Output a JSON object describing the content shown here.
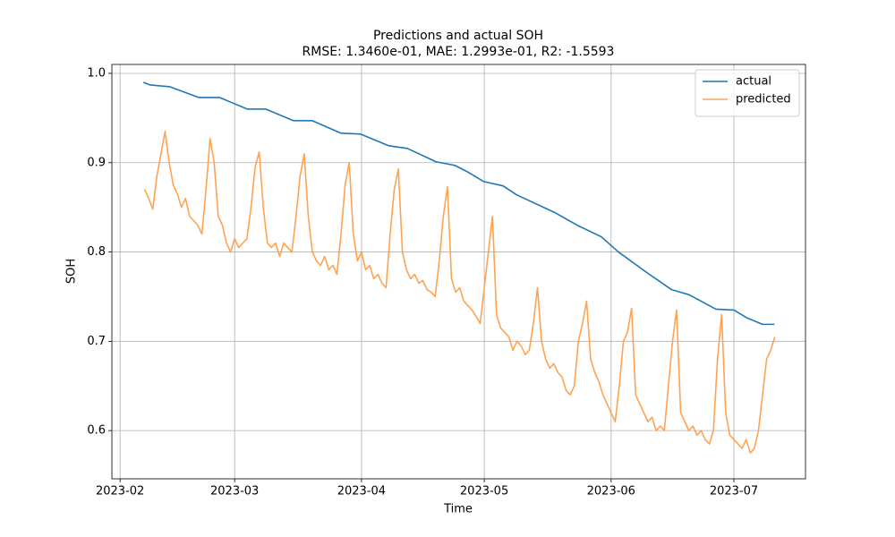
{
  "chart_data": {
    "type": "line",
    "title": "Predictions and actual SOH",
    "subtitle": "RMSE: 1.3460e-01, MAE: 1.2993e-01, R2: -1.5593",
    "x_label": "Time",
    "y_label": "SOH",
    "xlim": [
      -2,
      167.5
    ],
    "ylim": [
      0.546,
      1.01
    ],
    "xticks": [
      {
        "value": 0,
        "label": "2023-02"
      },
      {
        "value": 28,
        "label": "2023-03"
      },
      {
        "value": 59,
        "label": "2023-04"
      },
      {
        "value": 89,
        "label": "2023-05"
      },
      {
        "value": 120,
        "label": "2023-06"
      },
      {
        "value": 150,
        "label": "2023-07"
      }
    ],
    "yticks": [
      0.6,
      0.7,
      0.8,
      0.9,
      {
        "value": 1.0,
        "label": "1.0"
      }
    ],
    "grid": true,
    "legend": "upper right",
    "series": [
      {
        "name": "actual",
        "color": "#1f77b4",
        "x": [
          5.7,
          7.4,
          12.2,
          19.2,
          24.3,
          31.1,
          35.6,
          42.4,
          47.0,
          54.0,
          58.8,
          65.6,
          70.2,
          77.2,
          81.8,
          84.8,
          88.8,
          93.6,
          96.9,
          106.3,
          111.7,
          117.6,
          121.8,
          128.1,
          134.7,
          139.1,
          145.6,
          150.0,
          153.3,
          157.0,
          159.9
        ],
        "values": [
          0.99,
          0.987,
          0.985,
          0.973,
          0.973,
          0.96,
          0.96,
          0.947,
          0.947,
          0.933,
          0.932,
          0.919,
          0.916,
          0.901,
          0.897,
          0.89,
          0.879,
          0.874,
          0.864,
          0.844,
          0.83,
          0.817,
          0.8,
          0.779,
          0.758,
          0.752,
          0.736,
          0.735,
          0.726,
          0.719,
          0.719
        ]
      },
      {
        "name": "predicted",
        "color": "#ffa352",
        "x": [
          6,
          7,
          8,
          9,
          10,
          11,
          12,
          13,
          14,
          15,
          16,
          17,
          18,
          19,
          20,
          21,
          22,
          23,
          24,
          25,
          26,
          27,
          28,
          29,
          30,
          31,
          32,
          33,
          34,
          35,
          36,
          37,
          38,
          39,
          40,
          41,
          42,
          43,
          44,
          45,
          46,
          47,
          48,
          49,
          50,
          51,
          52,
          53,
          54,
          55,
          56,
          57,
          58,
          59,
          60,
          61,
          62,
          63,
          64,
          65,
          66,
          67,
          68,
          69,
          70,
          71,
          72,
          73,
          74,
          75,
          76,
          77,
          78,
          79,
          80,
          81,
          82,
          83,
          84,
          85,
          86,
          87,
          88,
          89,
          90,
          91,
          92,
          93,
          94,
          95,
          96,
          97,
          98,
          99,
          100,
          101,
          102,
          103,
          104,
          105,
          106,
          107,
          108,
          109,
          110,
          111,
          112,
          113,
          114,
          115,
          116,
          117,
          118,
          119,
          120,
          121,
          122,
          123,
          124,
          125,
          126,
          127,
          128,
          129,
          130,
          131,
          132,
          133,
          134,
          135,
          136,
          137,
          138,
          139,
          140,
          141,
          142,
          143,
          144,
          145,
          146,
          147,
          148,
          149,
          150,
          151,
          152,
          153,
          154,
          155,
          156,
          157,
          158,
          159,
          160
        ],
        "values": [
          0.87,
          0.86,
          0.848,
          0.885,
          0.91,
          0.935,
          0.9,
          0.875,
          0.865,
          0.85,
          0.86,
          0.84,
          0.835,
          0.83,
          0.82,
          0.87,
          0.927,
          0.9,
          0.84,
          0.83,
          0.81,
          0.8,
          0.815,
          0.805,
          0.81,
          0.815,
          0.85,
          0.895,
          0.912,
          0.85,
          0.81,
          0.805,
          0.81,
          0.795,
          0.81,
          0.805,
          0.8,
          0.84,
          0.885,
          0.91,
          0.84,
          0.8,
          0.79,
          0.785,
          0.795,
          0.78,
          0.785,
          0.775,
          0.82,
          0.875,
          0.9,
          0.82,
          0.79,
          0.8,
          0.78,
          0.785,
          0.77,
          0.775,
          0.765,
          0.76,
          0.82,
          0.87,
          0.893,
          0.8,
          0.78,
          0.77,
          0.775,
          0.765,
          0.768,
          0.758,
          0.755,
          0.75,
          0.79,
          0.84,
          0.873,
          0.77,
          0.755,
          0.76,
          0.745,
          0.74,
          0.735,
          0.728,
          0.72,
          0.76,
          0.8,
          0.84,
          0.73,
          0.715,
          0.71,
          0.705,
          0.69,
          0.7,
          0.695,
          0.685,
          0.69,
          0.72,
          0.76,
          0.7,
          0.68,
          0.67,
          0.675,
          0.665,
          0.66,
          0.645,
          0.64,
          0.65,
          0.7,
          0.72,
          0.745,
          0.68,
          0.665,
          0.655,
          0.64,
          0.63,
          0.62,
          0.61,
          0.65,
          0.7,
          0.71,
          0.737,
          0.64,
          0.63,
          0.62,
          0.61,
          0.615,
          0.6,
          0.605,
          0.6,
          0.65,
          0.7,
          0.735,
          0.62,
          0.61,
          0.6,
          0.605,
          0.595,
          0.6,
          0.59,
          0.585,
          0.6,
          0.68,
          0.73,
          0.62,
          0.595,
          0.59,
          0.585,
          0.58,
          0.59,
          0.575,
          0.58,
          0.6,
          0.64,
          0.68,
          0.69,
          0.705
        ]
      }
    ]
  }
}
